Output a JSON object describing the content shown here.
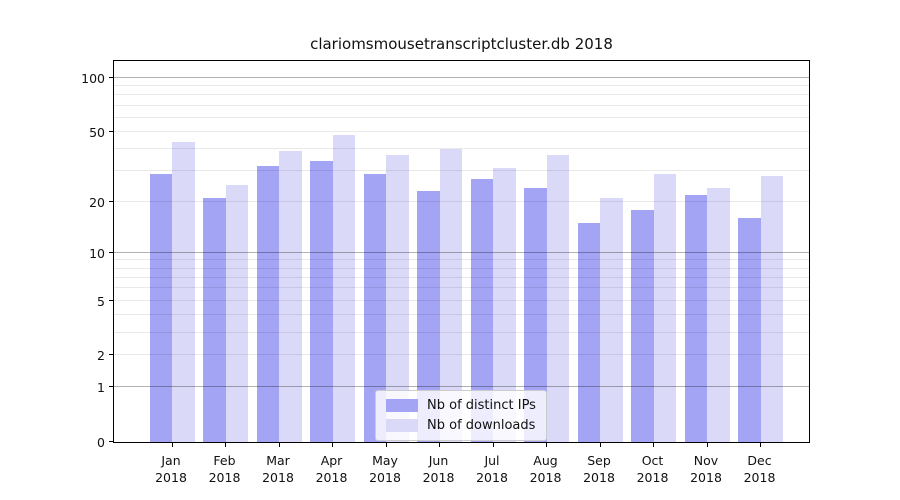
{
  "chart_data": {
    "type": "bar",
    "title": "clariomsmousetranscriptcluster.db 2018",
    "categories": [
      "Jan",
      "Feb",
      "Mar",
      "Apr",
      "May",
      "Jun",
      "Jul",
      "Aug",
      "Sep",
      "Oct",
      "Nov",
      "Dec"
    ],
    "x_year": "2018",
    "series": [
      {
        "key": "distinct-ips",
        "name": "Nb of distinct IPs",
        "color": "#a4a4f4",
        "values": [
          29,
          21,
          32,
          34,
          29,
          23,
          27,
          24,
          15,
          18,
          22,
          16
        ]
      },
      {
        "key": "downloads",
        "name": "Nb of downloads",
        "color": "#dadaf8",
        "values": [
          44,
          25,
          39,
          48,
          37,
          40,
          31,
          37,
          21,
          29,
          24,
          28
        ]
      }
    ],
    "yscale": "log1p",
    "ylim": [
      0,
      127
    ],
    "yticks": [
      0,
      1,
      2,
      5,
      10,
      20,
      50,
      100
    ],
    "major_gridlines": [
      1,
      10,
      100
    ],
    "minor_gridlines": [
      2,
      3,
      4,
      5,
      6,
      7,
      8,
      9,
      20,
      30,
      40,
      50,
      60,
      70,
      80,
      90
    ],
    "grid": "on",
    "legend_position": "lower center",
    "colors": {
      "spine": "#000000",
      "grid_major": "#b2b2b2",
      "grid_minor": "#e9e9e9",
      "background": "#ffffff"
    }
  }
}
